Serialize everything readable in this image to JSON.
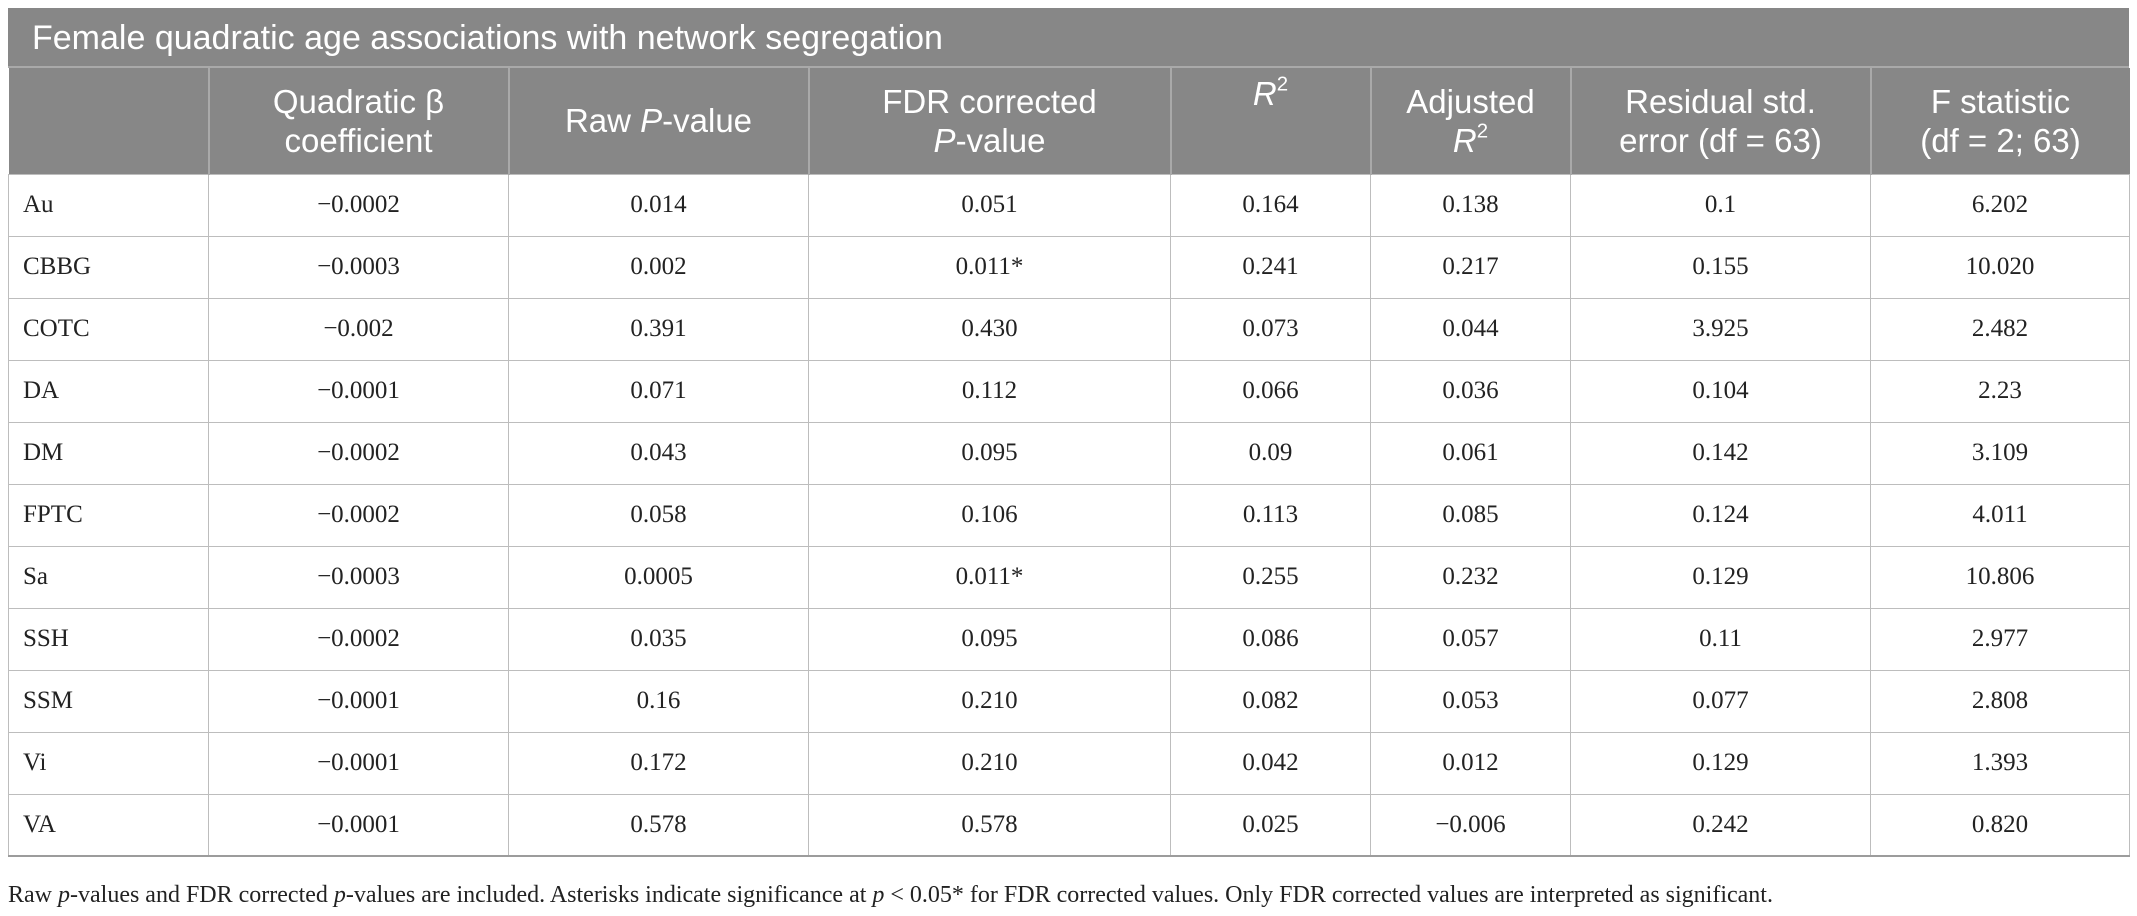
{
  "table": {
    "title": "Female quadratic age associations with network segregation",
    "headers": {
      "col0": "",
      "col1_line1": "Quadratic β",
      "col1_line2": "coefficient",
      "col2_pre": "Raw ",
      "col2_italic": "P",
      "col2_post": "-value",
      "col3_line1": "FDR corrected",
      "col3_italic": "P",
      "col3_post": "-value",
      "col4_italic": "R",
      "col4_sup": "2",
      "col5_line1": "Adjusted",
      "col5_italic": "R",
      "col5_sup": "2",
      "col6_line1": "Residual std.",
      "col6_line2": "error (df = 63)",
      "col7_line1": "F statistic",
      "col7_line2": "(df = 2; 63)"
    },
    "rows": [
      [
        "Au",
        "−0.0002",
        "0.014",
        "0.051",
        "0.164",
        "0.138",
        "0.1",
        "6.202"
      ],
      [
        "CBBG",
        "−0.0003",
        "0.002",
        "0.011*",
        "0.241",
        "0.217",
        "0.155",
        "10.020"
      ],
      [
        "COTC",
        "−0.002",
        "0.391",
        "0.430",
        "0.073",
        "0.044",
        "3.925",
        "2.482"
      ],
      [
        "DA",
        "−0.0001",
        "0.071",
        "0.112",
        "0.066",
        "0.036",
        "0.104",
        "2.23"
      ],
      [
        "DM",
        "−0.0002",
        "0.043",
        "0.095",
        "0.09",
        "0.061",
        "0.142",
        "3.109"
      ],
      [
        "FPTC",
        "−0.0002",
        "0.058",
        "0.106",
        "0.113",
        "0.085",
        "0.124",
        "4.011"
      ],
      [
        "Sa",
        "−0.0003",
        "0.0005",
        "0.011*",
        "0.255",
        "0.232",
        "0.129",
        "10.806"
      ],
      [
        "SSH",
        "−0.0002",
        "0.035",
        "0.095",
        "0.086",
        "0.057",
        "0.11",
        "2.977"
      ],
      [
        "SSM",
        "−0.0001",
        "0.16",
        "0.210",
        "0.082",
        "0.053",
        "0.077",
        "2.808"
      ],
      [
        "Vi",
        "−0.0001",
        "0.172",
        "0.210",
        "0.042",
        "0.012",
        "0.129",
        "1.393"
      ],
      [
        "VA",
        "−0.0001",
        "0.578",
        "0.578",
        "0.025",
        "−0.006",
        "0.242",
        "0.820"
      ]
    ]
  },
  "footnote": {
    "p1": "Raw ",
    "i1": "p",
    "p2": "-values and FDR corrected ",
    "i2": "p",
    "p3": "-values are included. Asterisks indicate significance at ",
    "i3": "p",
    "p4": " < 0.05* for FDR corrected values. Only FDR corrected values are interpreted as significant."
  }
}
